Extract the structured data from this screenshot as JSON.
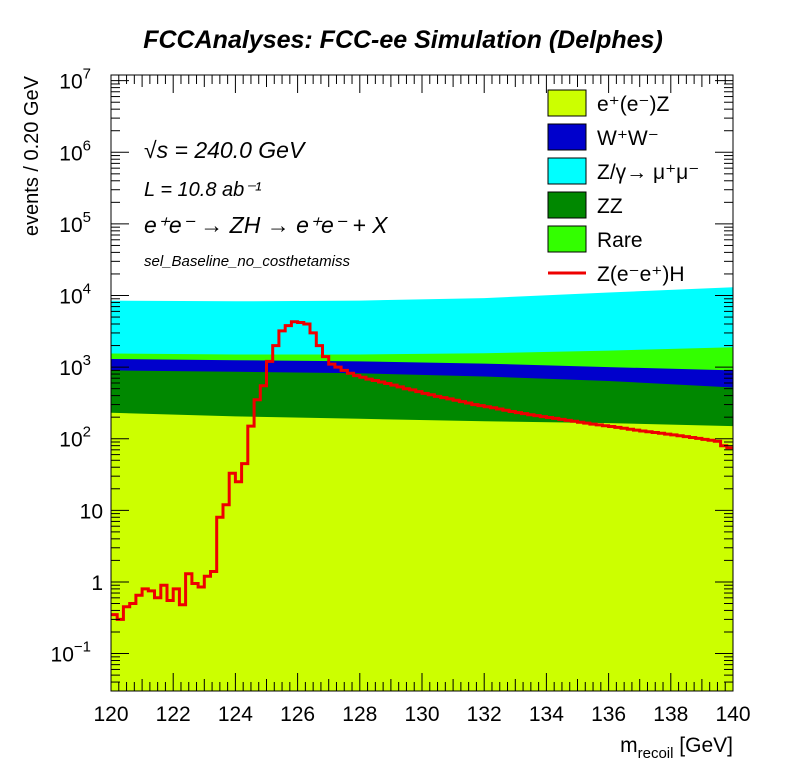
{
  "chart_data": {
    "type": "area",
    "title": "FCCAnalyses: FCC-ee Simulation (Delphes)",
    "xlabel_main": "m",
    "xlabel_sub": "recoil",
    "xlabel_unit": " [GeV]",
    "ylabel": "events / 0.20 GeV",
    "xlim": [
      120,
      140
    ],
    "ylim": [
      0.03,
      12000000
    ],
    "log_y": true,
    "x_ticks": [
      120,
      122,
      124,
      126,
      128,
      130,
      132,
      134,
      136,
      138,
      140
    ],
    "y_ticks": [
      {
        "value": 0.1,
        "base": "10",
        "exp": "−1"
      },
      {
        "value": 1,
        "base": "1",
        "exp": ""
      },
      {
        "value": 10,
        "base": "10",
        "exp": ""
      },
      {
        "value": 100,
        "base": "10",
        "exp": "2"
      },
      {
        "value": 1000,
        "base": "10",
        "exp": "3"
      },
      {
        "value": 10000,
        "base": "10",
        "exp": "4"
      },
      {
        "value": 100000,
        "base": "10",
        "exp": "5"
      },
      {
        "value": 1000000,
        "base": "10",
        "exp": "6"
      },
      {
        "value": 10000000,
        "base": "10",
        "exp": "7"
      }
    ],
    "annotations": {
      "sqrt_s": "√s = 240.0 GeV",
      "lumi": "L = 10.8 ab⁻¹",
      "process": "e⁺e⁻ → ZH → e⁺e⁻ + X",
      "selection": "sel_Baseline_no_costhetamiss"
    },
    "legend_position": "top-right",
    "stack_series": [
      {
        "name": "e⁺(e⁻)Z",
        "color": "#ccff00",
        "top": [
          230,
          205,
          190,
          175,
          165,
          150
        ]
      },
      {
        "name": "ZZ",
        "color": "#008800",
        "top": [
          900,
          860,
          820,
          740,
          640,
          520
        ]
      },
      {
        "name": "W⁺W⁻",
        "color": "#0000cc",
        "top": [
          1300,
          1250,
          1200,
          1120,
          1000,
          900
        ]
      },
      {
        "name": "Rare",
        "color": "#33ff00",
        "top": [
          1550,
          1500,
          1500,
          1560,
          1700,
          1900
        ]
      },
      {
        "name": "Z/γ→ μ⁺μ⁻",
        "color": "#00ffff",
        "top": [
          8500,
          8300,
          8500,
          9200,
          11000,
          13000
        ]
      }
    ],
    "stack_x": [
      120,
      124,
      128,
      132,
      136,
      140
    ],
    "signal": {
      "name": "Z(e⁻e⁺)H",
      "color": "#ee0000",
      "bin_width": 0.2,
      "x_start": 120,
      "values": [
        0.35,
        0.3,
        0.45,
        0.5,
        0.65,
        0.8,
        0.75,
        0.6,
        0.9,
        0.55,
        0.8,
        0.48,
        1.3,
        0.95,
        0.85,
        1.2,
        1.4,
        8,
        12,
        33,
        25,
        45,
        150,
        350,
        550,
        1200,
        2000,
        3200,
        3800,
        4300,
        4200,
        4000,
        3000,
        2000,
        1400,
        1100,
        1000,
        900,
        820,
        760,
        720,
        680,
        650,
        620,
        590,
        560,
        530,
        500,
        480,
        455,
        430,
        410,
        390,
        375,
        360,
        345,
        330,
        315,
        300,
        290,
        280,
        270,
        260,
        250,
        240,
        232,
        224,
        216,
        210,
        204,
        198,
        192,
        186,
        180,
        175,
        170,
        165,
        160,
        156,
        152,
        148,
        144,
        140,
        136,
        132,
        128,
        125,
        122,
        119,
        116,
        113,
        110,
        107,
        104,
        101,
        98,
        95,
        92,
        80,
        75
      ]
    },
    "legend": [
      {
        "label": "e⁺(e⁻)Z",
        "kind": "box",
        "color": "#ccff00"
      },
      {
        "label": "W⁺W⁻",
        "kind": "box",
        "color": "#0000cc"
      },
      {
        "label": "Z/γ→ μ⁺μ⁻",
        "kind": "box",
        "color": "#00ffff"
      },
      {
        "label": "ZZ",
        "kind": "box",
        "color": "#008800"
      },
      {
        "label": "Rare",
        "kind": "box",
        "color": "#33ff00"
      },
      {
        "label": "Z(e⁻e⁺)H",
        "kind": "line",
        "color": "#ee0000"
      }
    ]
  }
}
